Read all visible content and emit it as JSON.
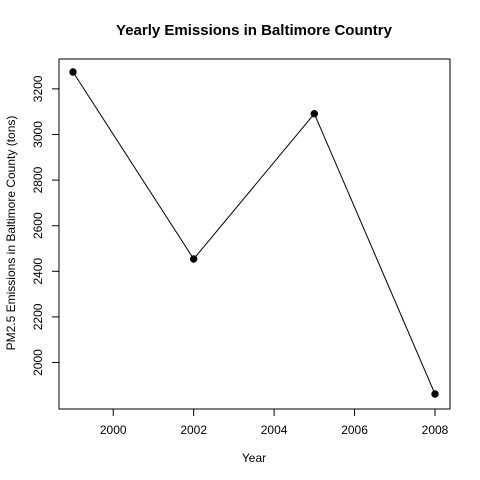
{
  "chart_data": {
    "type": "line",
    "title": "Yearly Emissions in Baltimore Country",
    "xlabel": "Year",
    "ylabel": "PM2.5 Emissions in Baltimore County (tons)",
    "x": [
      1999,
      2002,
      2005,
      2008
    ],
    "series": [
      {
        "values": [
          3274,
          2454,
          3091,
          1862
        ]
      }
    ],
    "xlim": [
      1999,
      2008
    ],
    "ylim": [
      1862,
      3274
    ],
    "xticks": [
      2000,
      2002,
      2004,
      2006,
      2008
    ],
    "yticks": [
      2000,
      2200,
      2400,
      2600,
      2800,
      3000,
      3200
    ],
    "markers": "filled-circle",
    "line_color": "#000000",
    "grid": false,
    "legend": "none"
  }
}
